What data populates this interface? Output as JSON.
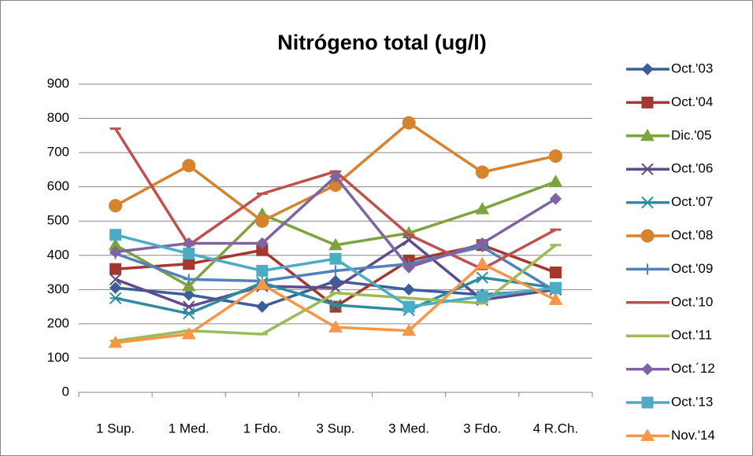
{
  "chart_data": {
    "type": "line",
    "title": "Nitrógeno total (ug/l)",
    "categories": [
      "1 Sup.",
      "1 Med.",
      "1 Fdo.",
      "3 Sup.",
      "3 Med.",
      "3 Fdo.",
      "4 R.Ch."
    ],
    "ylim": [
      0,
      900
    ],
    "yticks": [
      0,
      100,
      200,
      300,
      400,
      500,
      600,
      700,
      800,
      900
    ],
    "grid": true,
    "series": [
      {
        "name": "Oct.'03",
        "color": "#3a5f9a",
        "marker": "diamond",
        "values": [
          305,
          285,
          250,
          325,
          300,
          285,
          300
        ]
      },
      {
        "name": "Oct.'04",
        "color": "#a5372f",
        "marker": "square",
        "values": [
          360,
          375,
          415,
          250,
          385,
          430,
          350
        ]
      },
      {
        "name": "Dic.'05",
        "color": "#7fa33c",
        "marker": "triangle",
        "values": [
          430,
          310,
          520,
          430,
          465,
          535,
          615
        ]
      },
      {
        "name": "Oct.'06",
        "color": "#5f4a8b",
        "marker": "x",
        "values": [
          330,
          250,
          310,
          305,
          445,
          270,
          300
        ]
      },
      {
        "name": "Oct.'07",
        "color": "#2b8ca3",
        "marker": "star",
        "values": [
          275,
          230,
          320,
          255,
          240,
          335,
          305
        ]
      },
      {
        "name": "Oct.'08",
        "color": "#d7822c",
        "marker": "circle",
        "values": [
          545,
          662,
          500,
          605,
          787,
          643,
          690
        ]
      },
      {
        "name": "Oct.'09",
        "color": "#4f81bd",
        "marker": "plus",
        "values": [
          405,
          330,
          325,
          355,
          375,
          425,
          295
        ]
      },
      {
        "name": "Oct.'10",
        "color": "#c0504d",
        "marker": "dash",
        "values": [
          770,
          430,
          580,
          645,
          460,
          360,
          475
        ]
      },
      {
        "name": "Oct.'11",
        "color": "#9bbb59",
        "marker": "dash",
        "values": [
          150,
          180,
          170,
          290,
          275,
          260,
          430
        ]
      },
      {
        "name": "Oct.´12",
        "color": "#8064a2",
        "marker": "diamond",
        "values": [
          410,
          435,
          435,
          630,
          365,
          435,
          565
        ]
      },
      {
        "name": "Oct.'13",
        "color": "#4bacc6",
        "marker": "square",
        "values": [
          460,
          405,
          355,
          390,
          250,
          280,
          305
        ]
      },
      {
        "name": "Nov.'14",
        "color": "#f79646",
        "marker": "triangle",
        "values": [
          145,
          170,
          315,
          190,
          180,
          375,
          270
        ]
      }
    ]
  }
}
